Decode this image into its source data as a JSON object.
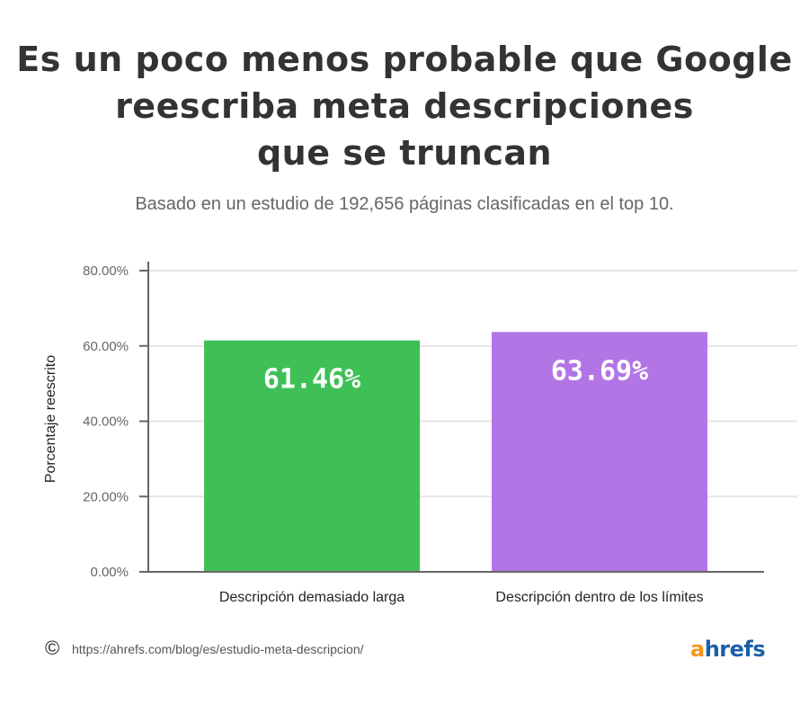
{
  "chart_data": {
    "type": "bar",
    "title_lines": [
      "Es un poco menos probable que Google",
      "reescriba meta descripciones",
      "que se truncan"
    ],
    "subtitle": "Basado en un estudio de 192,656 páginas clasificadas en el top 10.",
    "categories": [
      "Descripción demasiado larga",
      "Descripción dentro de los límites"
    ],
    "values": [
      61.46,
      63.69
    ],
    "data_labels": [
      "61.46%",
      "63.69%"
    ],
    "colors": [
      "#3ec057",
      "#b275e6"
    ],
    "xlabel": "",
    "ylabel": "Porcentaje reescrito",
    "ylim": [
      0,
      80
    ],
    "yticks": [
      "0.00%",
      "20.00%",
      "40.00%",
      "60.00%",
      "80.00%"
    ],
    "grid": true,
    "legend": "none"
  },
  "footer": {
    "copyright_icon": "©",
    "url": "https://ahrefs.com/blog/es/estudio-meta-descripcion/",
    "logo_a": "a",
    "logo_rest": "hrefs"
  }
}
